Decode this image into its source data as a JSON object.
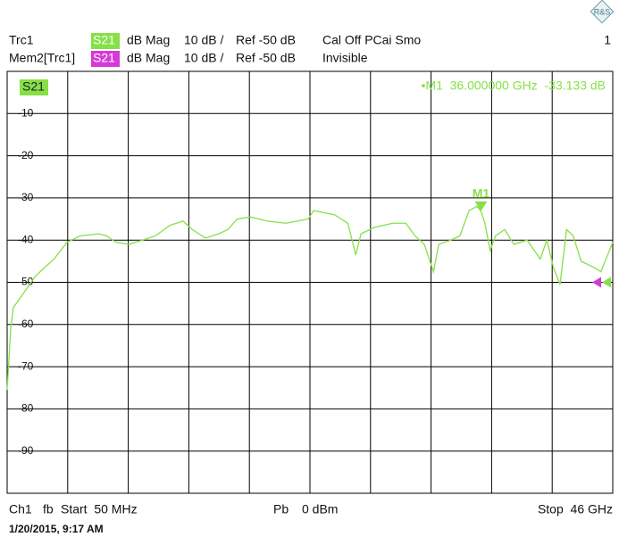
{
  "header": {
    "rows": [
      [
        "Trc1",
        "S21",
        "dB Mag",
        "10 dB /",
        "Ref -50 dB",
        "Cal Off PCai Smo"
      ],
      [
        "Mem2[Trc1]",
        "S21",
        "dB Mag",
        "10 dB /",
        "Ref -50 dB",
        "Invisible"
      ]
    ],
    "channel_number": "1"
  },
  "chart_data": {
    "type": "line",
    "x": [
      0.05,
      0.32,
      0.52,
      1.2,
      2.2,
      3.6,
      4.6,
      5.6,
      7.0,
      7.6,
      8.3,
      9.3,
      10.3,
      11.3,
      12.4,
      13.4,
      14.1,
      15.1,
      16.1,
      16.8,
      17.5,
      18.5,
      19.8,
      21.2,
      22.9,
      23.3,
      24.9,
      25.9,
      26.5,
      26.9,
      27.9,
      29.3,
      30.3,
      31.0,
      31.7,
      32.4,
      32.8,
      33.7,
      34.4,
      35.1,
      35.7,
      36.0,
      36.3,
      36.7,
      37.1,
      37.8,
      38.5,
      39.5,
      40.5,
      41.0,
      41.5,
      42.0,
      42.5,
      43.0,
      43.6,
      44.6,
      45.1,
      46.0
    ],
    "series": [
      {
        "name": "S21",
        "color": "#86e047",
        "values": [
          -75.5,
          -61,
          -56,
          -53,
          -48.5,
          -44.5,
          -40.5,
          -39,
          -38.5,
          -39,
          -40.5,
          -41,
          -40,
          -39,
          -36.5,
          -35.5,
          -37.5,
          -39.5,
          -38.5,
          -37.5,
          -35,
          -34.5,
          -35.5,
          -36,
          -35,
          -33,
          -34,
          -36,
          -43.5,
          -38.5,
          -37,
          -36,
          -36,
          -39,
          -41,
          -47.5,
          -41,
          -40,
          -39,
          -33,
          -32,
          -33.133,
          -36,
          -42.5,
          -39,
          -37.5,
          -41,
          -40,
          -44.5,
          -40,
          -46.5,
          -50.5,
          -37.5,
          -39,
          -45,
          -46.5,
          -47.5,
          -40.5
        ]
      }
    ],
    "memory_color": "#d63ad6",
    "xlim": [
      0.05,
      46
    ],
    "ylim": [
      -100,
      0
    ],
    "yticks": [
      -90,
      -80,
      -70,
      -60,
      -50,
      -40,
      -30,
      -20,
      -10
    ],
    "grid": true,
    "ref_level": -50,
    "markers": [
      {
        "name": "M1",
        "x": 36.0,
        "value": -33.133,
        "readout": "•M1  36.000000 GHz  -33.133 dB"
      }
    ]
  },
  "footer": {
    "items": [
      "Ch1",
      "fb",
      "Start  50 MHz",
      "Pb",
      "0 dBm",
      "Stop  46 GHz"
    ],
    "timestamp": "1/20/2015, 9:17 AM"
  }
}
